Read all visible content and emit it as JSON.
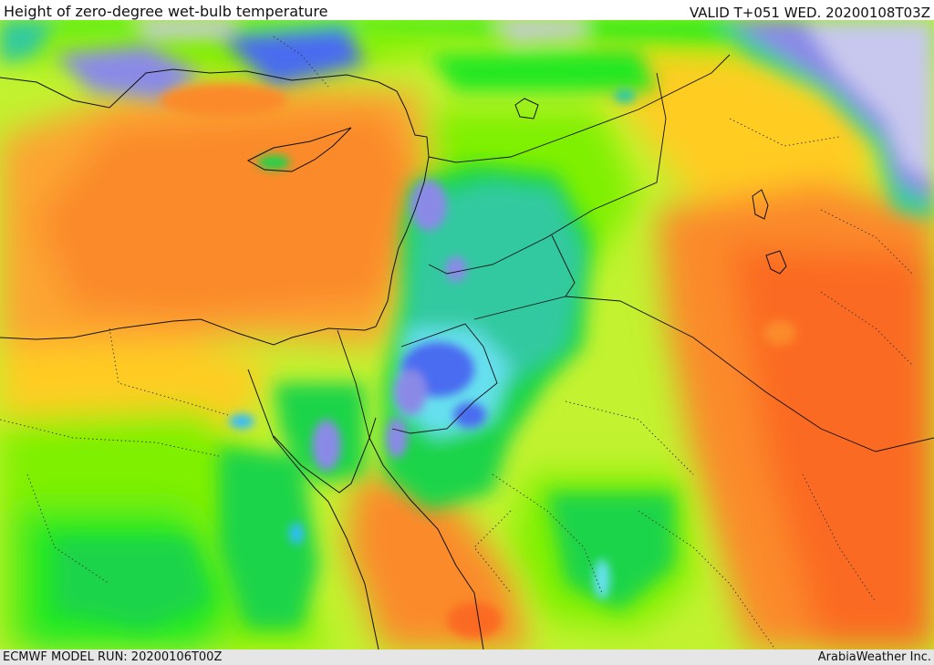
{
  "header": {
    "title": "Height of zero-degree wet-bulb temperature",
    "valid": "VALID T+051 WED. 20200108T03Z"
  },
  "footer": {
    "model_run": "ECMWF MODEL RUN: 20200106T00Z",
    "credit": "ArabiaWeather Inc."
  },
  "map": {
    "layer": "wet-bulb zero height",
    "palette": [
      "#c8c8ee",
      "#8a8ae6",
      "#4a6cf0",
      "#33bbff",
      "#66e0ee",
      "#33c9a0",
      "#1fd44a",
      "#22e822",
      "#7ef000",
      "#c2f230",
      "#eef233",
      "#ffcc22",
      "#fca533",
      "#fb8a2a",
      "#fb6a22",
      "#f84e14"
    ]
  }
}
